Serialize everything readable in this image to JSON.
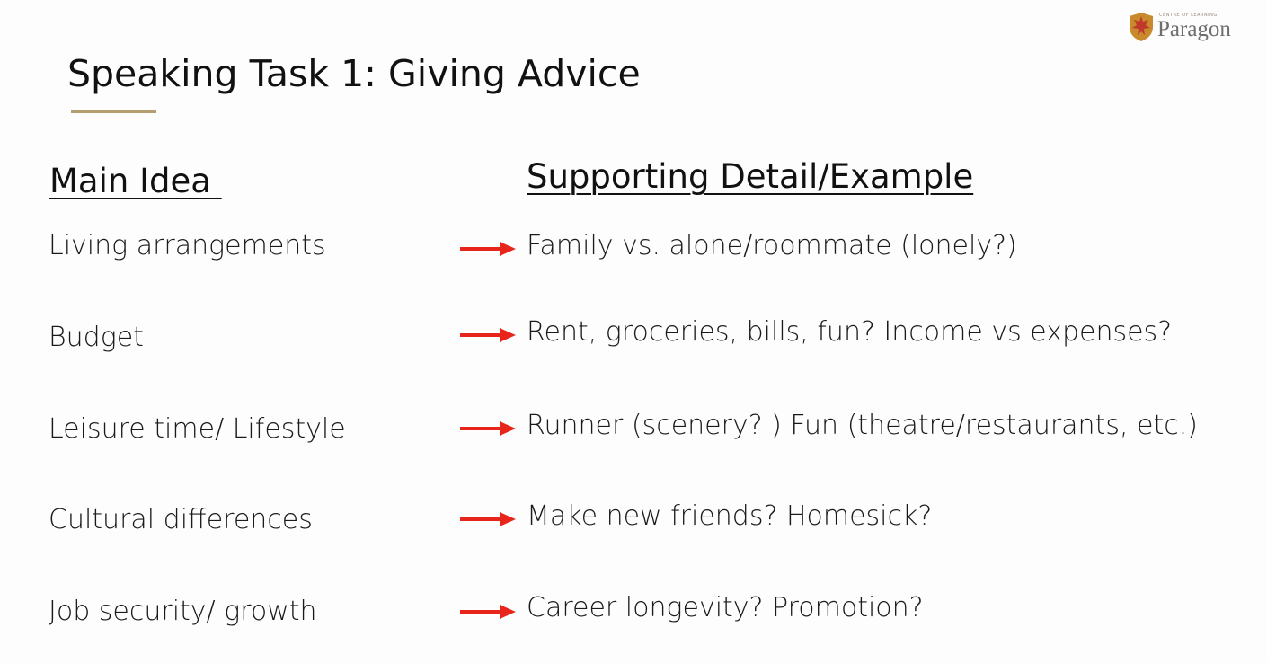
{
  "brand": {
    "tagline": "CENTRE OF LEARNING",
    "name": "Paragon",
    "shield_color": "#c0392b"
  },
  "slide": {
    "title": "Speaking Task 1: Giving Advice",
    "accent_color": "#b49f6e",
    "arrow_color": "#e8251a",
    "main_heading": "Main Idea ",
    "support_heading": "Supporting Detail/Example",
    "rows": [
      {
        "idea": "Living arrangements",
        "detail": "Family vs. alone/roommate (lonely?)"
      },
      {
        "idea": "Budget",
        "detail": "Rent, groceries, bills, fun? Income vs expenses?"
      },
      {
        "idea": "Leisure time/ Lifestyle",
        "detail": "Runner (scenery? ) Fun (theatre/restaurants, etc.)"
      },
      {
        "idea": "Cultural differences",
        "detail": "Make new friends? Homesick?"
      },
      {
        "idea": "Job security/ growth",
        "detail": "Career longevity? Promotion?"
      }
    ]
  }
}
